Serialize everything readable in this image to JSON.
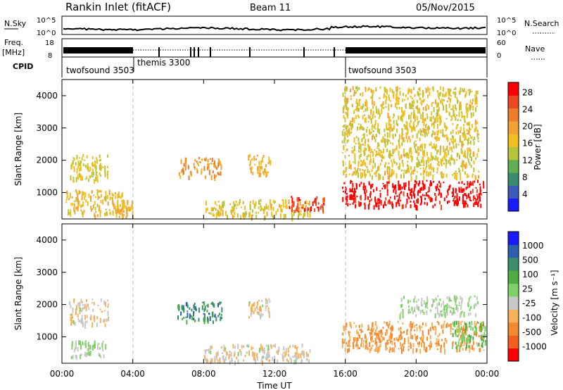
{
  "header": {
    "station": "Rankin Inlet (fitACF)",
    "beam": "Beam 11",
    "date": "05/Nov/2015"
  },
  "panels": {
    "nsky": {
      "label": "N.Sky",
      "ticks": [
        "10^5",
        "10^0"
      ],
      "right_label": "N.Search",
      "right_ticks": [
        "10^5",
        "10^0"
      ]
    },
    "freq": {
      "label_top": "Freq.",
      "label_bottom": "[MHz]",
      "ticks": [
        "18",
        "8"
      ],
      "right_label": "Nave",
      "right_ticks": [
        "60",
        "0"
      ]
    },
    "cpid": {
      "label": "CPID",
      "modes": [
        "twofsound 3503",
        "themis 3300",
        "twofsound 3503"
      ]
    }
  },
  "chart_data": [
    {
      "type": "heatmap",
      "name": "power",
      "ylabel": "Slant Range [km]",
      "ylim": [
        180,
        4500
      ],
      "yticks": [
        1000,
        2000,
        3000,
        4000
      ],
      "xlim": [
        0,
        24
      ],
      "xticks": [
        "00:00",
        "04:00",
        "08:00",
        "12:00",
        "16:00",
        "20:00",
        "00:00"
      ],
      "colorbar": {
        "label": "Power [dB]",
        "ticks": [
          "4",
          "8",
          "12",
          "16",
          "20",
          "24",
          "28"
        ],
        "range": [
          0,
          30
        ]
      },
      "regions": [
        {
          "t": [
            0.4,
            2.6
          ],
          "r": [
            1400,
            2200
          ],
          "value": 15
        },
        {
          "t": [
            0.2,
            3.5
          ],
          "r": [
            300,
            1100
          ],
          "value": 17
        },
        {
          "t": [
            3.0,
            4.0
          ],
          "r": [
            250,
            800
          ],
          "value": 18
        },
        {
          "t": [
            6.5,
            9.0
          ],
          "r": [
            1500,
            2100
          ],
          "value": 20
        },
        {
          "t": [
            8.0,
            14.0
          ],
          "r": [
            250,
            800
          ],
          "value": 16
        },
        {
          "t": [
            10.5,
            11.8
          ],
          "r": [
            1600,
            2200
          ],
          "value": 18
        },
        {
          "t": [
            12.8,
            14.8
          ],
          "r": [
            450,
            900
          ],
          "value": 26
        },
        {
          "t": [
            15.8,
            23.8
          ],
          "r": [
            600,
            1400
          ],
          "value": 29
        },
        {
          "t": [
            15.8,
            23.5
          ],
          "r": [
            1500,
            4300
          ],
          "value": 16
        }
      ]
    },
    {
      "type": "heatmap",
      "name": "velocity",
      "ylabel": "Slant Range [km]",
      "ylim": [
        180,
        4500
      ],
      "yticks": [
        1000,
        2000,
        3000,
        4000
      ],
      "xlim": [
        0,
        24
      ],
      "xticks": [
        "00:00",
        "04:00",
        "08:00",
        "12:00",
        "16:00",
        "20:00",
        "00:00"
      ],
      "xlabel": "Time UT",
      "colorbar": {
        "label": "Velocity [m s⁻¹]",
        "ticks": [
          "1000",
          "500",
          "100",
          "25",
          "-25",
          "-100",
          "-500",
          "-1000"
        ],
        "range": [
          -1200,
          1200
        ]
      },
      "regions": [
        {
          "t": [
            0.4,
            2.6
          ],
          "r": [
            1400,
            2200
          ],
          "value": -200
        },
        {
          "t": [
            0.5,
            2.5
          ],
          "r": [
            400,
            900
          ],
          "value": 0
        },
        {
          "t": [
            6.5,
            9.0
          ],
          "r": [
            1500,
            2100
          ],
          "value": 600
        },
        {
          "t": [
            8.0,
            14.0
          ],
          "r": [
            250,
            800
          ],
          "value": -200
        },
        {
          "t": [
            10.5,
            11.8
          ],
          "r": [
            1600,
            2200
          ],
          "value": -150
        },
        {
          "t": [
            15.8,
            23.8
          ],
          "r": [
            600,
            1500
          ],
          "value": -500
        },
        {
          "t": [
            19.0,
            23.5
          ],
          "r": [
            1700,
            2300
          ],
          "value": 0
        },
        {
          "t": [
            22.0,
            23.9
          ],
          "r": [
            700,
            1500
          ],
          "value": 200
        }
      ]
    }
  ],
  "colors": {
    "power": [
      "#1a1aff",
      "#3c5ab8",
      "#3b8c6e",
      "#62ad50",
      "#b5c43a",
      "#f0c020",
      "#f3a035",
      "#ef7b2b",
      "#ef4a1f",
      "#ff0000"
    ],
    "velocity": [
      "#ff0000",
      "#f2601c",
      "#f38a2e",
      "#f4b05a",
      "#c8c8c8",
      "#7fd066",
      "#4fae3f",
      "#3a8f6a",
      "#2e5fae",
      "#1a1aff"
    ]
  }
}
